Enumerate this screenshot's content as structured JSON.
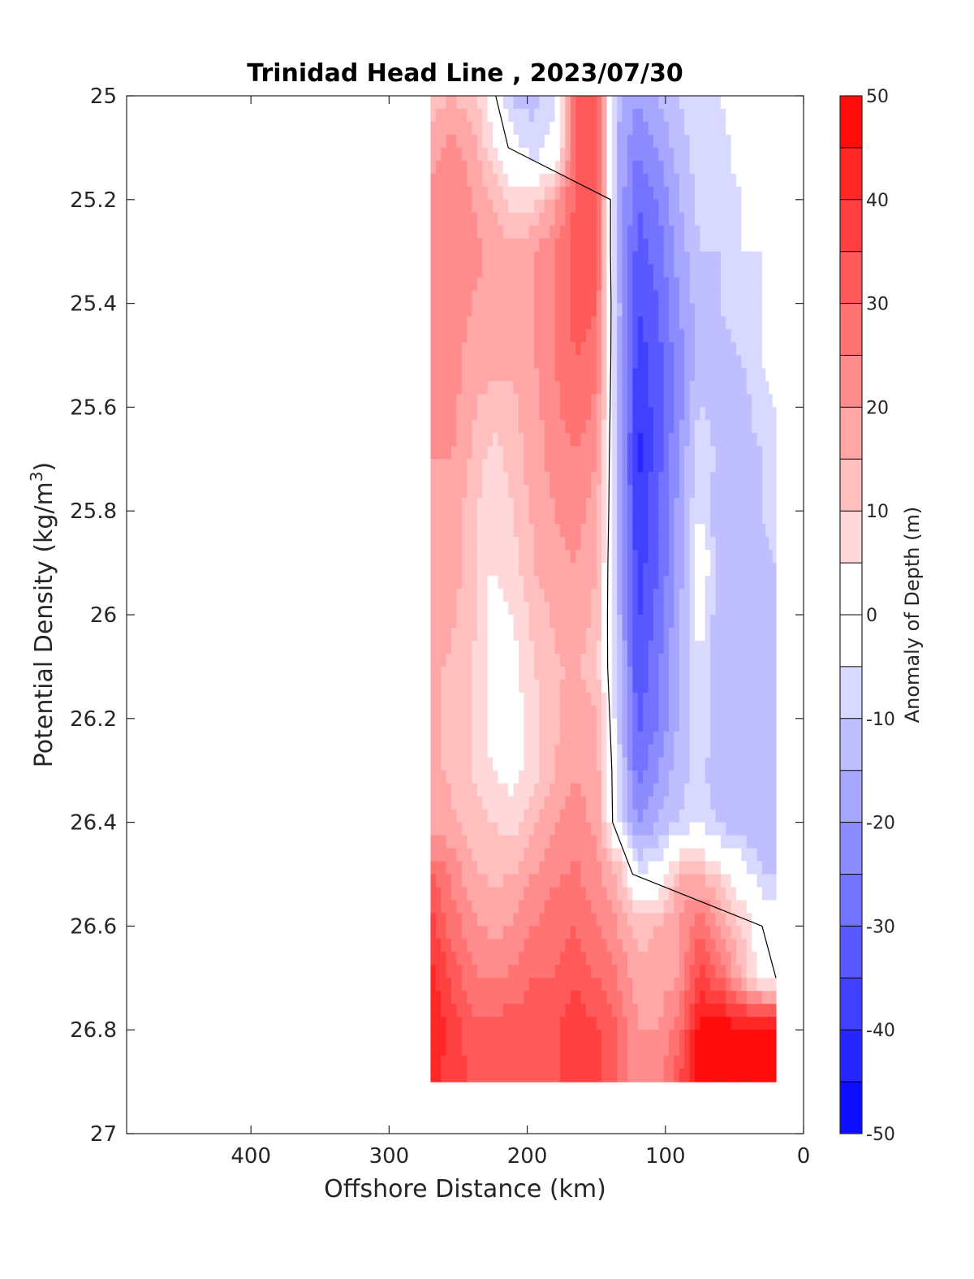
{
  "chart_data": {
    "type": "heatmap",
    "subtype": "filled-contour",
    "title": "Trinidad Head Line , 2023/07/30",
    "xlabel": "Offshore Distance (km)",
    "ylabel_main": "Potential Density (kg/m",
    "ylabel_sup": "3",
    "ylabel_tail": ")",
    "colorbar_label": "Anomaly of Depth (m)",
    "xlim": [
      490,
      0
    ],
    "x_reversed": true,
    "ylim": [
      25,
      27
    ],
    "y_reversed": true,
    "x_ticks": [
      400,
      300,
      200,
      100,
      0
    ],
    "y_ticks": [
      "25",
      "25.2",
      "25.4",
      "25.6",
      "25.8",
      "26",
      "26.2",
      "26.4",
      "26.6",
      "26.8",
      "27"
    ],
    "colorbar_ticks": [
      "50",
      "40",
      "30",
      "20",
      "10",
      "0",
      "-10",
      "-20",
      "-30",
      "-40",
      "-50"
    ],
    "colorbar_range": [
      -50,
      50
    ],
    "colorbar_step": 5,
    "colormap_low": "#0000ff",
    "colormap_mid": "#ffffff",
    "colormap_high": "#ff0000",
    "zero_contour_color": "#000000",
    "data_extent": {
      "x": [
        20,
        270
      ],
      "y": [
        25,
        26.9
      ]
    },
    "grid": false,
    "x": [
      270,
      255,
      240,
      225,
      210,
      195,
      180,
      165,
      150,
      135,
      120,
      105,
      90,
      75,
      60,
      45,
      30,
      20
    ],
    "y": [
      25.0,
      25.1,
      25.2,
      25.3,
      25.4,
      25.5,
      25.6,
      25.7,
      25.8,
      25.9,
      26.0,
      26.1,
      26.2,
      26.3,
      26.4,
      26.5,
      26.6,
      26.7,
      26.8,
      26.9
    ],
    "z": [
      [
        12,
        15,
        12,
        2,
        -12,
        -12,
        -6,
        30,
        32,
        -12,
        -20,
        -15,
        -10,
        -5,
        -5,
        0,
        0,
        0
      ],
      [
        18,
        22,
        18,
        6,
        -2,
        -8,
        -2,
        30,
        33,
        -15,
        -25,
        -20,
        -12,
        -8,
        -8,
        -2,
        0,
        0
      ],
      [
        22,
        24,
        20,
        15,
        6,
        8,
        18,
        31,
        33,
        -15,
        -30,
        -25,
        -15,
        -8,
        -8,
        -5,
        -2,
        0
      ],
      [
        24,
        25,
        22,
        18,
        18,
        20,
        25,
        32,
        32,
        -15,
        -32,
        -28,
        -18,
        -10,
        -10,
        -5,
        -5,
        0
      ],
      [
        22,
        24,
        20,
        18,
        18,
        20,
        25,
        32,
        30,
        -12,
        -35,
        -30,
        -20,
        -12,
        -10,
        -8,
        -5,
        0
      ],
      [
        22,
        22,
        18,
        18,
        16,
        20,
        25,
        30,
        28,
        -12,
        -38,
        -32,
        -22,
        -12,
        -12,
        -10,
        -5,
        0
      ],
      [
        22,
        22,
        16,
        12,
        14,
        18,
        24,
        28,
        24,
        -12,
        -40,
        -32,
        -22,
        -10,
        -12,
        -12,
        -8,
        -5
      ],
      [
        20,
        20,
        14,
        8,
        12,
        18,
        22,
        24,
        20,
        -12,
        -42,
        -32,
        -20,
        -5,
        -12,
        -12,
        -10,
        -5
      ],
      [
        20,
        18,
        12,
        5,
        10,
        16,
        20,
        22,
        18,
        -12,
        -40,
        -30,
        -18,
        -5,
        -15,
        -15,
        -10,
        -5
      ],
      [
        20,
        18,
        12,
        5,
        8,
        15,
        18,
        20,
        15,
        -12,
        -38,
        -30,
        -18,
        2,
        -15,
        -15,
        -12,
        -10
      ],
      [
        18,
        16,
        12,
        2,
        5,
        12,
        16,
        18,
        14,
        -12,
        -36,
        -28,
        -16,
        -2,
        -15,
        -15,
        -15,
        -15
      ],
      [
        16,
        14,
        10,
        2,
        3,
        10,
        14,
        16,
        12,
        -10,
        -34,
        -26,
        -15,
        -5,
        -15,
        -15,
        -15,
        -15
      ],
      [
        16,
        14,
        10,
        2,
        2,
        8,
        14,
        18,
        15,
        -8,
        -32,
        -25,
        -14,
        -5,
        -15,
        -15,
        -15,
        -15
      ],
      [
        16,
        14,
        10,
        5,
        2,
        8,
        15,
        20,
        18,
        -6,
        -28,
        -20,
        -12,
        -8,
        -15,
        -15,
        -15,
        -15
      ],
      [
        18,
        16,
        12,
        10,
        8,
        14,
        20,
        22,
        18,
        -5,
        -20,
        -15,
        -10,
        -5,
        -12,
        -15,
        -15,
        -15
      ],
      [
        30,
        24,
        16,
        14,
        15,
        20,
        24,
        26,
        22,
        15,
        -5,
        -2,
        15,
        15,
        8,
        0,
        -10,
        -10
      ],
      [
        38,
        28,
        22,
        18,
        20,
        25,
        28,
        30,
        25,
        20,
        12,
        15,
        20,
        28,
        20,
        10,
        0,
        0
      ],
      [
        42,
        34,
        26,
        24,
        26,
        30,
        30,
        34,
        30,
        25,
        18,
        18,
        20,
        38,
        30,
        15,
        2,
        0
      ],
      [
        45,
        38,
        32,
        32,
        34,
        34,
        34,
        38,
        36,
        30,
        20,
        20,
        28,
        48,
        48,
        48,
        48,
        48
      ],
      [
        42,
        38,
        34,
        34,
        34,
        32,
        34,
        38,
        38,
        30,
        22,
        22,
        35,
        48,
        48,
        48,
        48,
        48
      ]
    ]
  }
}
